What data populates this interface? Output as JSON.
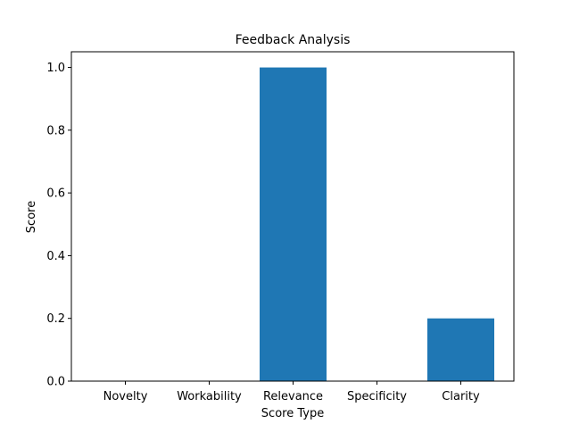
{
  "chart_data": {
    "type": "bar",
    "title": "Feedback Analysis",
    "xlabel": "Score Type",
    "ylabel": "Score",
    "categories": [
      "Novelty",
      "Workability",
      "Relevance",
      "Specificity",
      "Clarity"
    ],
    "values": [
      0.0,
      0.0,
      1.0,
      0.0,
      0.2
    ],
    "ylim": [
      0,
      1.05
    ],
    "yticks": [
      "0.0",
      "0.2",
      "0.4",
      "0.6",
      "0.8",
      "1.0"
    ],
    "grid": false,
    "legend": "none",
    "bar_color": "#1f77b4"
  }
}
